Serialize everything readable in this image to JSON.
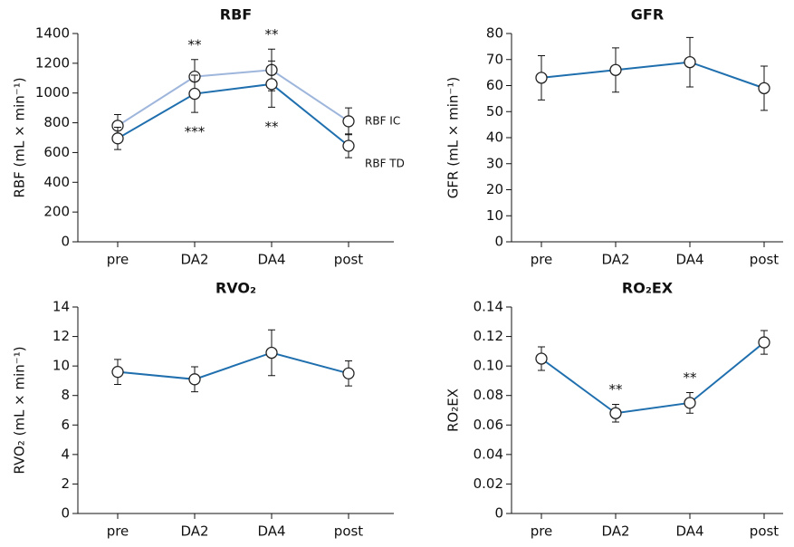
{
  "chart_data": [
    {
      "type": "line",
      "title": "RBF",
      "y_label": "RBF (mL × min⁻¹)",
      "categories": [
        "pre",
        "DA2",
        "DA4",
        "post"
      ],
      "ylim": [
        0,
        1400
      ],
      "yticks": [
        0,
        200,
        400,
        600,
        800,
        1000,
        1200,
        1400
      ],
      "legend": "line-end",
      "series": [
        {
          "name": "RBF IC",
          "color": "#9fb6dc",
          "values": [
            780,
            1110,
            1155,
            810
          ],
          "errors": [
            75,
            115,
            140,
            90
          ],
          "annotations": [
            null,
            "**",
            "**",
            null
          ],
          "annotation_side": "above"
        },
        {
          "name": "RBF TD",
          "color": "#1f6fae",
          "values": [
            695,
            995,
            1060,
            645
          ],
          "errors": [
            75,
            125,
            155,
            80
          ],
          "annotations": [
            null,
            "***",
            "**",
            null
          ],
          "annotation_side": "below"
        }
      ]
    },
    {
      "type": "line",
      "title": "GFR",
      "y_label": "GFR (mL × min⁻¹)",
      "categories": [
        "pre",
        "DA2",
        "DA4",
        "post"
      ],
      "ylim": [
        0,
        80
      ],
      "yticks": [
        0,
        10,
        20,
        30,
        40,
        50,
        60,
        70,
        80
      ],
      "series": [
        {
          "color": "#1f6fae",
          "values": [
            63,
            66,
            69,
            59
          ],
          "errors": [
            8.5,
            8.5,
            9.5,
            8.5
          ]
        }
      ]
    },
    {
      "type": "line",
      "title": "RVO₂",
      "y_label": "RVO₂ (mL × min⁻¹)",
      "categories": [
        "pre",
        "DA2",
        "DA4",
        "post"
      ],
      "ylim": [
        0,
        14
      ],
      "yticks": [
        0,
        2,
        4,
        6,
        8,
        10,
        12,
        14
      ],
      "series": [
        {
          "color": "#1f6fae",
          "values": [
            9.6,
            9.1,
            10.9,
            9.5
          ],
          "errors": [
            0.85,
            0.85,
            1.55,
            0.85
          ]
        }
      ]
    },
    {
      "type": "line",
      "title": "RO₂EX",
      "y_label": "RO₂EX",
      "categories": [
        "pre",
        "DA2",
        "DA4",
        "post"
      ],
      "ylim": [
        0,
        0.14
      ],
      "yticks": [
        0,
        0.02,
        0.04,
        0.06,
        0.08,
        {
          "value": 0.1,
          "label": "0.10"
        },
        0.12,
        0.14
      ],
      "series": [
        {
          "color": "#1f6fae",
          "values": [
            0.105,
            0.068,
            0.075,
            0.116
          ],
          "errors": [
            0.008,
            0.006,
            0.007,
            0.008
          ],
          "annotations": [
            null,
            "**",
            "**",
            null
          ],
          "annotation_side": "above"
        }
      ]
    }
  ]
}
